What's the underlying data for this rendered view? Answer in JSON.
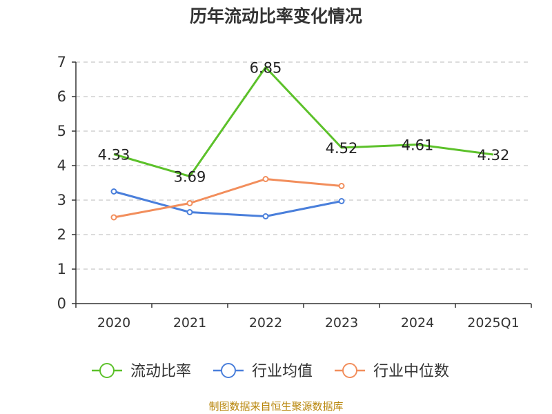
{
  "chart_data": {
    "type": "line",
    "title": "历年流动比率变化情况",
    "xlabel": "",
    "ylabel": "",
    "categories": [
      "2020",
      "2021",
      "2022",
      "2023",
      "2024",
      "2025Q1"
    ],
    "ylim": [
      0,
      7
    ],
    "yticks": [
      0,
      1,
      2,
      3,
      4,
      5,
      6,
      7
    ],
    "grid": true,
    "legend": "bottom",
    "series": [
      {
        "name": "流动比率",
        "color": "#5cc12a",
        "values": [
          4.33,
          3.69,
          6.85,
          4.52,
          4.61,
          4.32
        ],
        "labels": [
          "4.33",
          "3.69",
          "6.85",
          "4.52",
          "4.61",
          "4.32"
        ],
        "markers": false
      },
      {
        "name": "行业均值",
        "color": "#4a7fdb",
        "values": [
          3.25,
          2.65,
          2.53,
          2.97,
          null,
          null
        ],
        "labels": null,
        "markers": true
      },
      {
        "name": "行业中位数",
        "color": "#f28e5c",
        "values": [
          2.5,
          2.91,
          3.61,
          3.41,
          null,
          null
        ],
        "labels": null,
        "markers": true
      }
    ]
  },
  "source_text": "制图数据来自恒生聚源数据库"
}
